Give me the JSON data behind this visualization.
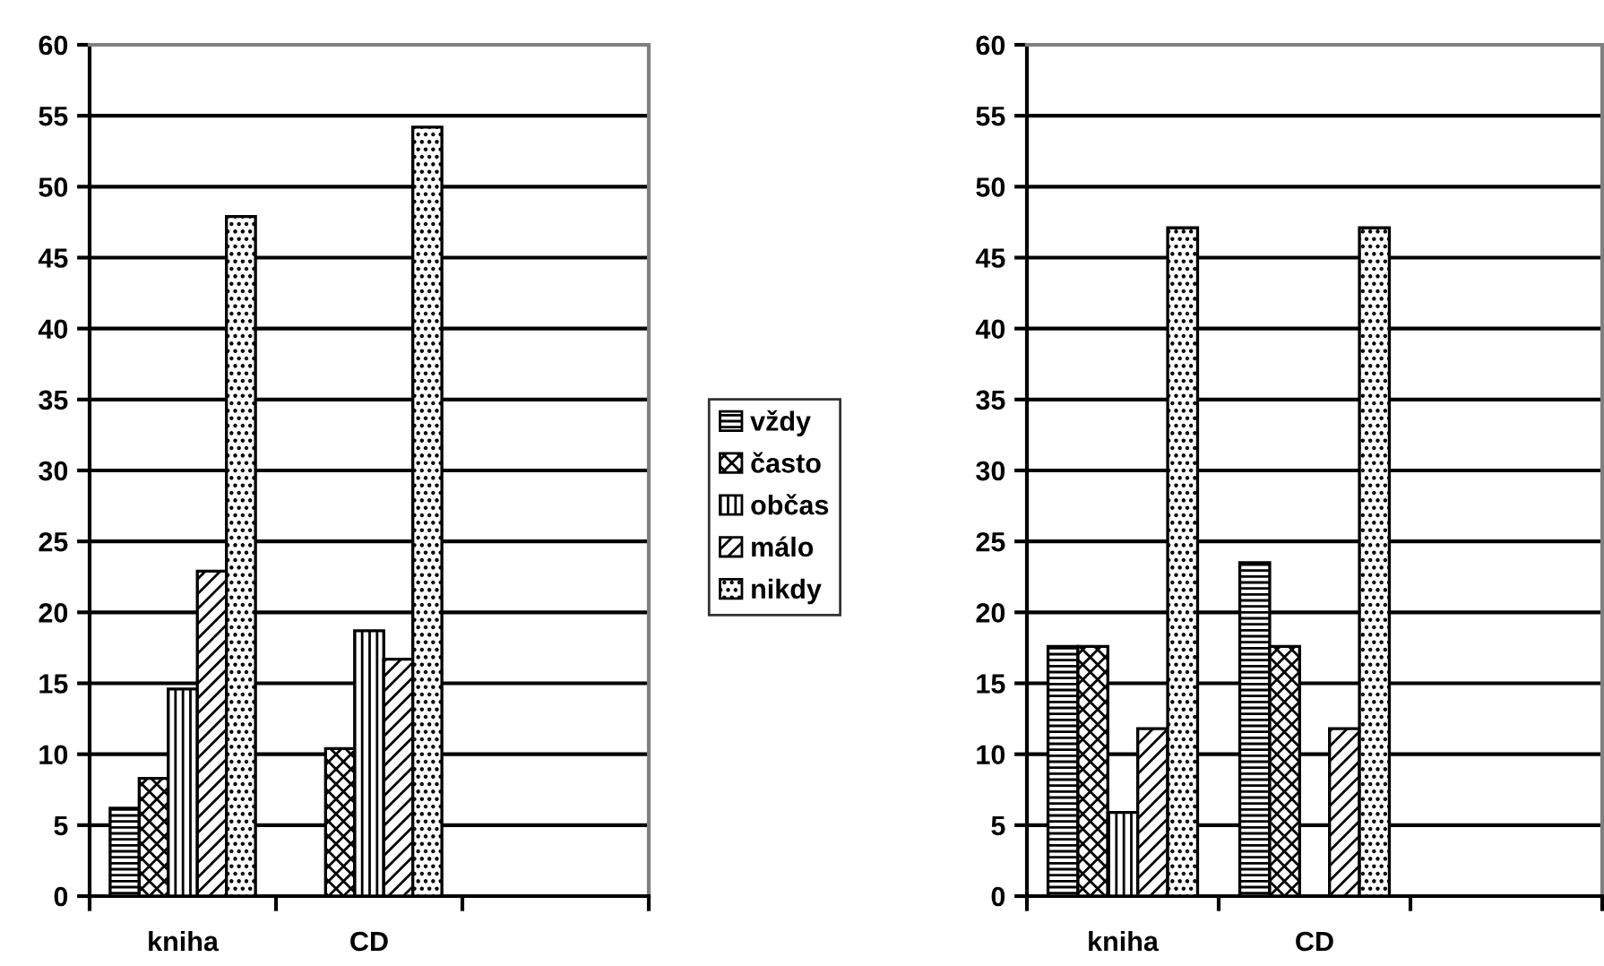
{
  "chart_data": [
    {
      "type": "bar",
      "categories": [
        "kniha",
        "CD",
        null
      ],
      "ylim": [
        0,
        60
      ],
      "yticks": [
        0,
        5,
        10,
        15,
        20,
        25,
        30,
        35,
        40,
        45,
        50,
        55,
        60
      ],
      "grid": "y",
      "legend": "right",
      "series": [
        {
          "name": "vždy",
          "color": "#000000",
          "values": [
            6.2,
            null,
            null
          ]
        },
        {
          "name": "často",
          "color": "#000000",
          "values": [
            8.3,
            10.4,
            null
          ]
        },
        {
          "name": "občas",
          "color": "#000000",
          "values": [
            14.6,
            18.7,
            null
          ]
        },
        {
          "name": "málo",
          "color": "#000000",
          "values": [
            22.9,
            16.7,
            null
          ]
        },
        {
          "name": "nikdy",
          "color": "#000000",
          "values": [
            47.9,
            54.2,
            null
          ]
        }
      ]
    },
    {
      "type": "bar",
      "categories": [
        "kniha",
        "CD",
        null
      ],
      "ylim": [
        0,
        60
      ],
      "yticks": [
        0,
        5,
        10,
        15,
        20,
        25,
        30,
        35,
        40,
        45,
        50,
        55,
        60
      ],
      "grid": "y",
      "series": [
        {
          "color": "#000000",
          "values": [
            17.6,
            23.5,
            null
          ]
        },
        {
          "color": "#000000",
          "values": [
            17.6,
            17.6,
            null
          ]
        },
        {
          "color": "#000000",
          "values": [
            5.9,
            null,
            null
          ]
        },
        {
          "color": "#000000",
          "values": [
            11.8,
            11.8,
            null
          ]
        },
        {
          "color": "#000000",
          "values": [
            47.1,
            47.1,
            null
          ]
        }
      ]
    }
  ]
}
